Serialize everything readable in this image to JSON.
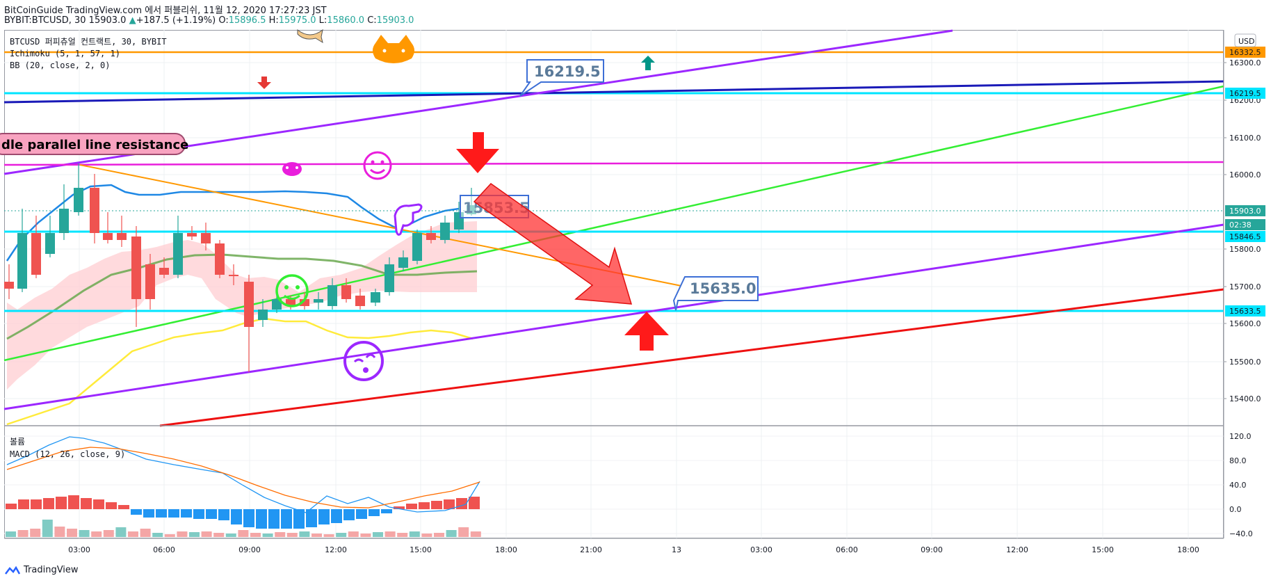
{
  "header": {
    "line1": "BitCoinGuide TradingView.com 에서 퍼블리쉬, 11월 12, 2020 17:27:23 JST",
    "symbol": "BYBIT:BTCUSD, 30 15903.0",
    "change_arrow": "▲",
    "change": "+187.5 (+1.19%)",
    "o_label": "O:",
    "o": "15896.5",
    "h_label": "H:",
    "h": "15975.0",
    "l_label": "L:",
    "l": "15860.0",
    "c_label": "C:",
    "c": "15903.0"
  },
  "legend": {
    "title": "BTCUSD 퍼피츄얼 컨트랙트, 30, BYBIT",
    "ichimoku": "Ichimoku (5, 1, 57, 1)",
    "bb": "BB (20, close, 2, 0)",
    "volume": "볼륨",
    "macd": "MACD (12, 26, close, 9)"
  },
  "annotation": {
    "resistance_text": "dle parallel line resistance",
    "callout_top": "16219.5",
    "callout_mid": "15853.5",
    "callout_low": "15635.0"
  },
  "price_axis": {
    "currency": "USD",
    "ticks": [
      "16300.0",
      "16200.0",
      "16100.0",
      "16000.0",
      "15800.0",
      "15700.0",
      "15600.0",
      "15500.0",
      "15400.0"
    ],
    "labels": [
      {
        "text": "16332.5",
        "color": "#ff9800"
      },
      {
        "text": "16219.5",
        "color": "#00e5ff"
      },
      {
        "text": "15903.0",
        "color": "#26a69a"
      },
      {
        "text": "02:38",
        "color": "#26a69a"
      },
      {
        "text": "15846.5",
        "color": "#00e5ff"
      },
      {
        "text": "15633.5",
        "color": "#00e5ff"
      }
    ]
  },
  "macd_axis": {
    "ticks": [
      "120.0",
      "80.0",
      "40.0",
      "0.0",
      "−40.0"
    ]
  },
  "time_axis": {
    "ticks": [
      "03:00",
      "06:00",
      "09:00",
      "12:00",
      "15:00",
      "18:00",
      "21:00",
      "13",
      "03:00",
      "06:00",
      "09:00",
      "12:00",
      "15:00",
      "18:00"
    ]
  },
  "footer": {
    "brand": "TradingView"
  },
  "colors": {
    "up": "#26a69a",
    "down": "#ef5350",
    "cyan": "#00e5ff",
    "orange": "#ff9800",
    "purple": "#9c27ff",
    "magenta": "#e91edc",
    "green": "#33ee33",
    "red": "#ee1111",
    "navy": "#1a1ab8"
  }
}
